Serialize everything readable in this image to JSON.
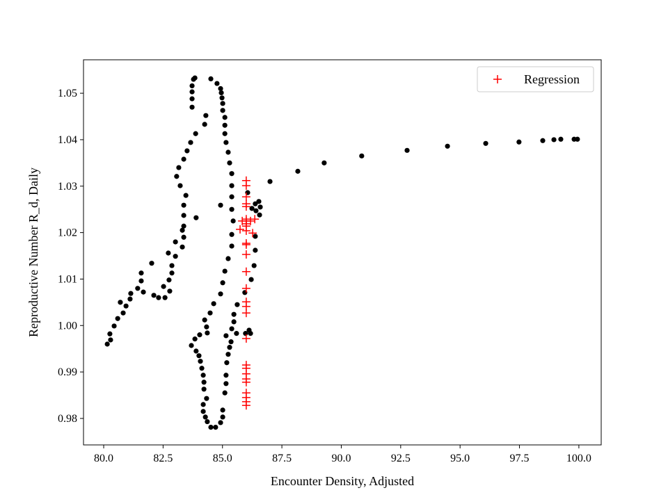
{
  "chart_data": {
    "type": "scatter",
    "title": "",
    "xlabel": "Encounter Density, Adjusted",
    "ylabel": "Reproductive Number R_d, Daily",
    "xlim": [
      79.15,
      100.94
    ],
    "ylim": [
      0.9743,
      1.0572
    ],
    "xticks": [
      80.0,
      82.5,
      85.0,
      87.5,
      90.0,
      92.5,
      95.0,
      97.5,
      100.0
    ],
    "xtick_labels": [
      "80.0",
      "82.5",
      "85.0",
      "87.5",
      "90.0",
      "92.5",
      "95.0",
      "97.5",
      "100.0"
    ],
    "yticks": [
      0.98,
      0.99,
      1.0,
      1.01,
      1.02,
      1.03,
      1.04,
      1.05
    ],
    "ytick_labels": [
      "0.98",
      "0.99",
      "1.00",
      "1.01",
      "1.02",
      "1.03",
      "1.04",
      "1.05"
    ],
    "grid": false,
    "legend": {
      "placement": "top-right",
      "entries": [
        {
          "label": "Regression",
          "marker": "plus",
          "color": "#ff0000"
        }
      ]
    },
    "series": [
      {
        "marker": "dot",
        "color": "#000000",
        "points": [
          [
            80.15,
            0.996
          ],
          [
            80.29,
            0.9969
          ],
          [
            80.26,
            0.9982
          ],
          [
            80.44,
            0.9999
          ],
          [
            80.59,
            1.0015
          ],
          [
            80.7,
            1.005
          ],
          [
            80.82,
            1.0027
          ],
          [
            80.94,
            1.0042
          ],
          [
            81.11,
            1.0057
          ],
          [
            81.14,
            1.0069
          ],
          [
            81.43,
            1.008
          ],
          [
            81.67,
            1.0072
          ],
          [
            81.58,
            1.0096
          ],
          [
            81.58,
            1.0113
          ],
          [
            82.02,
            1.0134
          ],
          [
            82.11,
            1.0065
          ],
          [
            82.31,
            1.006
          ],
          [
            82.58,
            1.006
          ],
          [
            82.78,
            1.0074
          ],
          [
            82.52,
            1.0084
          ],
          [
            82.75,
            1.0098
          ],
          [
            82.87,
            1.0113
          ],
          [
            82.87,
            1.0129
          ],
          [
            83.02,
            1.0149
          ],
          [
            82.72,
            1.0156
          ],
          [
            83.02,
            1.018
          ],
          [
            83.31,
            1.0169
          ],
          [
            83.37,
            1.019
          ],
          [
            83.31,
            1.0205
          ],
          [
            83.37,
            1.0214
          ],
          [
            83.37,
            1.0237
          ],
          [
            83.89,
            1.0232
          ],
          [
            83.37,
            1.0259
          ],
          [
            83.46,
            1.028
          ],
          [
            83.22,
            1.0301
          ],
          [
            83.07,
            1.0321
          ],
          [
            83.16,
            1.034
          ],
          [
            83.37,
            1.0358
          ],
          [
            83.51,
            1.0376
          ],
          [
            83.66,
            1.0394
          ],
          [
            83.87,
            1.0413
          ],
          [
            84.25,
            1.0433
          ],
          [
            84.3,
            1.0452
          ],
          [
            83.72,
            1.047
          ],
          [
            83.72,
            1.0488
          ],
          [
            83.72,
            1.0503
          ],
          [
            83.72,
            1.0516
          ],
          [
            83.78,
            1.053
          ],
          [
            83.84,
            1.0533
          ],
          [
            84.51,
            1.0531
          ],
          [
            84.77,
            1.0521
          ],
          [
            84.92,
            1.051
          ],
          [
            84.95,
            1.0501
          ],
          [
            84.98,
            1.049
          ],
          [
            85.01,
            1.0478
          ],
          [
            85.01,
            1.0463
          ],
          [
            85.1,
            1.0448
          ],
          [
            85.1,
            1.0431
          ],
          [
            85.1,
            1.0413
          ],
          [
            85.15,
            1.0394
          ],
          [
            85.24,
            1.0373
          ],
          [
            85.3,
            1.035
          ],
          [
            85.39,
            1.0327
          ],
          [
            85.39,
            1.0301
          ],
          [
            85.39,
            1.0277
          ],
          [
            85.39,
            1.025
          ],
          [
            85.45,
            1.0225
          ],
          [
            85.39,
            1.0196
          ],
          [
            85.39,
            1.0171
          ],
          [
            85.24,
            1.0144
          ],
          [
            85.1,
            1.0117
          ],
          [
            85.01,
            1.0092
          ],
          [
            84.92,
            1.0068
          ],
          [
            84.63,
            1.0047
          ],
          [
            84.48,
            1.0027
          ],
          [
            84.25,
            1.0012
          ],
          [
            84.33,
            0.9997
          ],
          [
            84.36,
            0.9984
          ],
          [
            84.04,
            0.998
          ],
          [
            83.84,
            0.9971
          ],
          [
            83.69,
            0.9957
          ],
          [
            83.89,
            0.9945
          ],
          [
            84.01,
            0.9935
          ],
          [
            84.07,
            0.9923
          ],
          [
            84.13,
            0.9908
          ],
          [
            84.19,
            0.9893
          ],
          [
            84.22,
            0.9878
          ],
          [
            84.22,
            0.9863
          ],
          [
            84.33,
            0.9843
          ],
          [
            84.19,
            0.983
          ],
          [
            84.19,
            0.9815
          ],
          [
            84.28,
            0.9803
          ],
          [
            84.36,
            0.9793
          ],
          [
            84.51,
            0.9781
          ],
          [
            84.71,
            0.9781
          ],
          [
            84.92,
            0.9791
          ],
          [
            85.01,
            0.9803
          ],
          [
            85.01,
            0.9818
          ],
          [
            85.1,
            0.9855
          ],
          [
            85.15,
            0.9875
          ],
          [
            85.15,
            0.9893
          ],
          [
            85.18,
            0.992
          ],
          [
            85.24,
            0.9938
          ],
          [
            85.3,
            0.9953
          ],
          [
            85.36,
            0.9965
          ],
          [
            85.15,
            0.9978
          ],
          [
            85.39,
            0.9993
          ],
          [
            85.59,
            0.9983
          ],
          [
            85.97,
            0.9983
          ],
          [
            86.18,
            0.9983
          ],
          [
            86.12,
            0.999
          ],
          [
            85.48,
            1.0008
          ],
          [
            85.48,
            1.0024
          ],
          [
            85.62,
            1.0045
          ],
          [
            85.94,
            1.0071
          ],
          [
            86.21,
            1.0099
          ],
          [
            86.33,
            1.0129
          ],
          [
            86.38,
            1.0162
          ],
          [
            86.38,
            1.0192
          ],
          [
            86.56,
            1.0238
          ],
          [
            86.59,
            1.0255
          ],
          [
            86.53,
            1.0267
          ],
          [
            86.38,
            1.0262
          ],
          [
            86.24,
            1.0252
          ],
          [
            86.41,
            1.0247
          ],
          [
            86.06,
            1.0286
          ],
          [
            84.92,
            1.0259
          ],
          [
            87.0,
            1.031
          ],
          [
            88.17,
            1.0332
          ],
          [
            89.28,
            1.035
          ],
          [
            90.86,
            1.0365
          ],
          [
            92.77,
            1.0377
          ],
          [
            94.47,
            1.0386
          ],
          [
            96.08,
            1.0392
          ],
          [
            97.48,
            1.0395
          ],
          [
            98.48,
            1.0398
          ],
          [
            98.95,
            1.04
          ],
          [
            99.24,
            1.0401
          ],
          [
            99.8,
            1.0401
          ],
          [
            99.94,
            1.0401
          ]
        ]
      },
      {
        "name": "Regression",
        "marker": "plus",
        "color": "#ff0000",
        "points": [
          [
            86.0,
            1.0312
          ],
          [
            86.0,
            1.0301
          ],
          [
            86.0,
            1.0277
          ],
          [
            86.0,
            1.0262
          ],
          [
            86.0,
            1.0256
          ],
          [
            86.0,
            1.0229
          ],
          [
            86.0,
            1.0225
          ],
          [
            86.0,
            1.0219
          ],
          [
            86.0,
            1.0214
          ],
          [
            86.0,
            1.0204
          ],
          [
            86.0,
            1.0177
          ],
          [
            86.0,
            1.0174
          ],
          [
            86.0,
            1.0153
          ],
          [
            86.0,
            1.0116
          ],
          [
            86.0,
            1.008
          ],
          [
            86.0,
            1.0051
          ],
          [
            86.0,
            1.0041
          ],
          [
            86.0,
            1.0027
          ],
          [
            86.0,
            0.9972
          ],
          [
            86.0,
            0.9915
          ],
          [
            86.0,
            0.9908
          ],
          [
            86.0,
            0.9896
          ],
          [
            86.0,
            0.9885
          ],
          [
            86.0,
            0.9878
          ],
          [
            86.0,
            0.9855
          ],
          [
            86.0,
            0.9845
          ],
          [
            86.0,
            0.9836
          ],
          [
            86.0,
            0.9828
          ],
          [
            85.83,
            1.0225
          ],
          [
            86.18,
            1.0225
          ],
          [
            86.36,
            1.0229
          ],
          [
            86.27,
            1.0199
          ],
          [
            85.74,
            1.0207
          ]
        ]
      }
    ]
  }
}
